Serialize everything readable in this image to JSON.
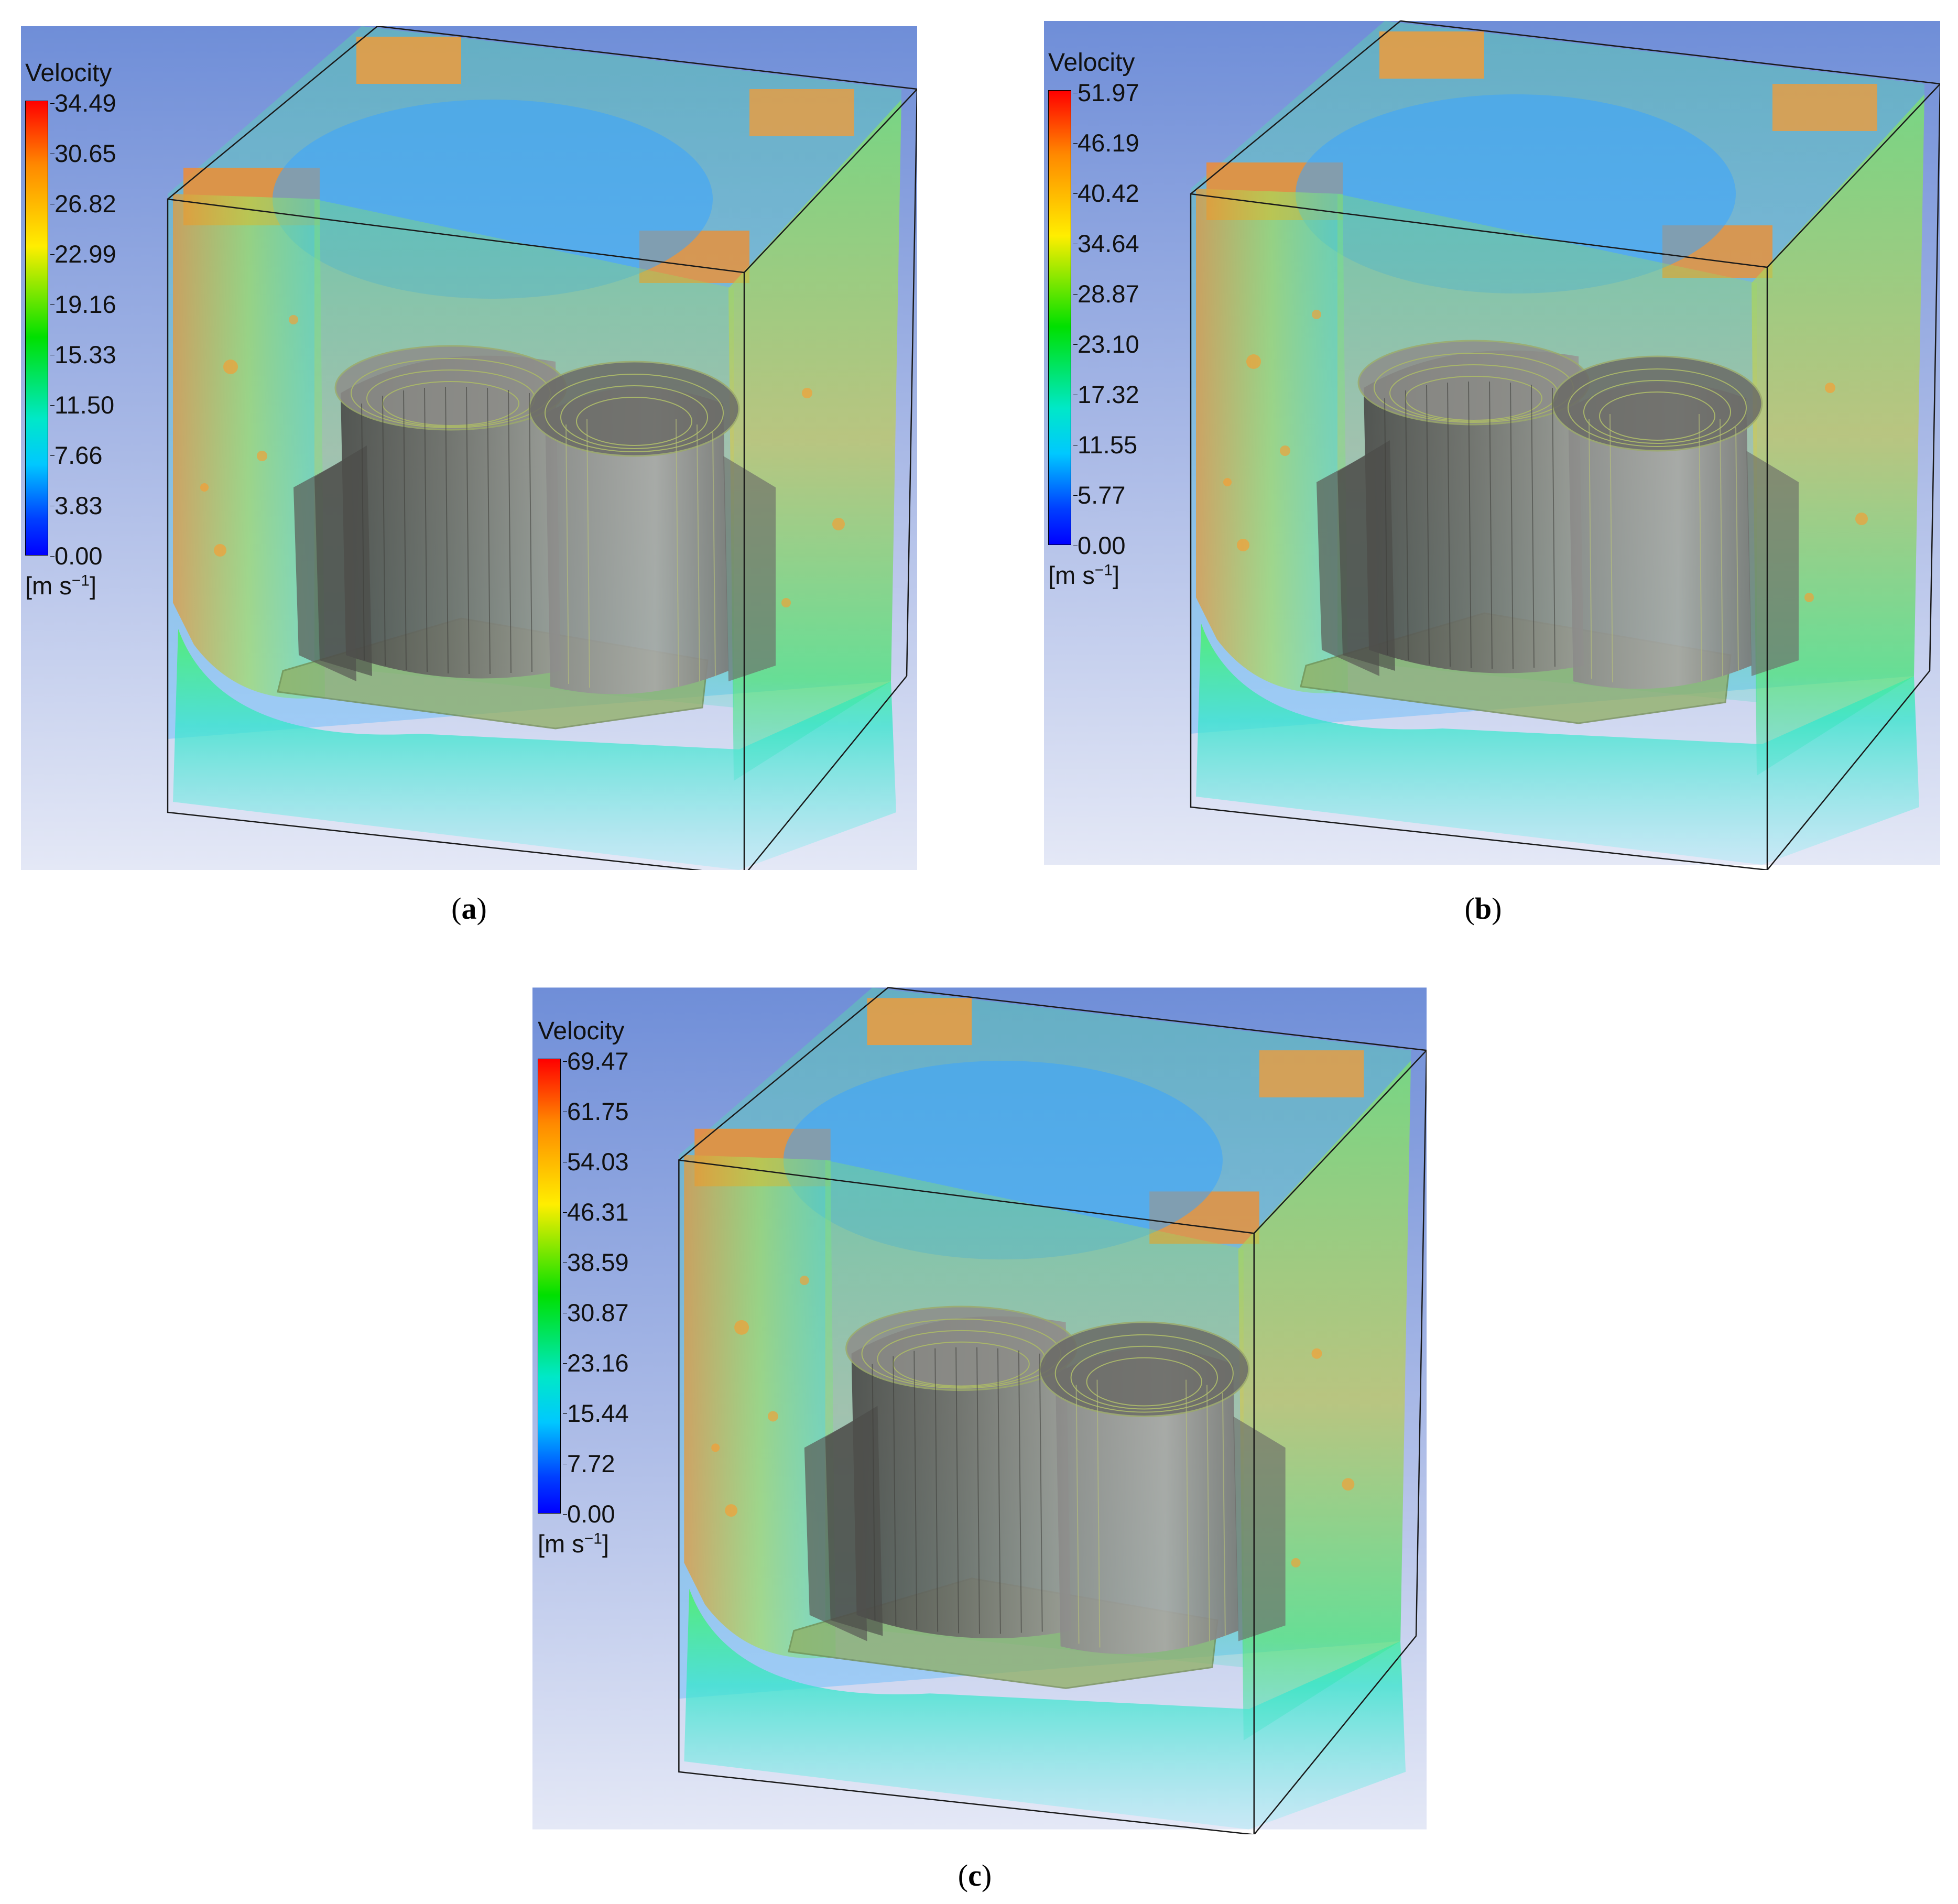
{
  "panels": [
    {
      "id": "a",
      "caption_open": "(",
      "caption_letter": "a",
      "caption_close": ")",
      "legend": {
        "title": "Velocity",
        "ticks": [
          "34.49",
          "30.65",
          "26.82",
          "22.99",
          "19.16",
          "15.33",
          "11.50",
          "7.66",
          "3.83",
          "0.00"
        ],
        "unit_base": "[m s",
        "unit_exp": "−1",
        "unit_close": "]"
      }
    },
    {
      "id": "b",
      "caption_open": "(",
      "caption_letter": "b",
      "caption_close": ")",
      "legend": {
        "title": "Velocity",
        "ticks": [
          "51.97",
          "46.19",
          "40.42",
          "34.64",
          "28.87",
          "23.10",
          "17.32",
          "11.55",
          "5.77",
          "0.00"
        ],
        "unit_base": "[m s",
        "unit_exp": "−1",
        "unit_close": "]"
      }
    },
    {
      "id": "c",
      "caption_open": "(",
      "caption_letter": "c",
      "caption_close": ")",
      "legend": {
        "title": "Velocity",
        "ticks": [
          "69.47",
          "61.75",
          "54.03",
          "46.31",
          "38.59",
          "30.87",
          "23.16",
          "15.44",
          "7.72",
          "0.00"
        ],
        "unit_base": "[m s",
        "unit_exp": "−1",
        "unit_close": "]"
      }
    }
  ],
  "colors": {
    "background_top": "#6f8ed8",
    "background_bottom": "#e4e8f6",
    "flow_high": "#ff8a1c",
    "flow_mid": "#c8e83a",
    "flow_low": "#2ee6d0",
    "core_gray": "#8c8c8c"
  }
}
